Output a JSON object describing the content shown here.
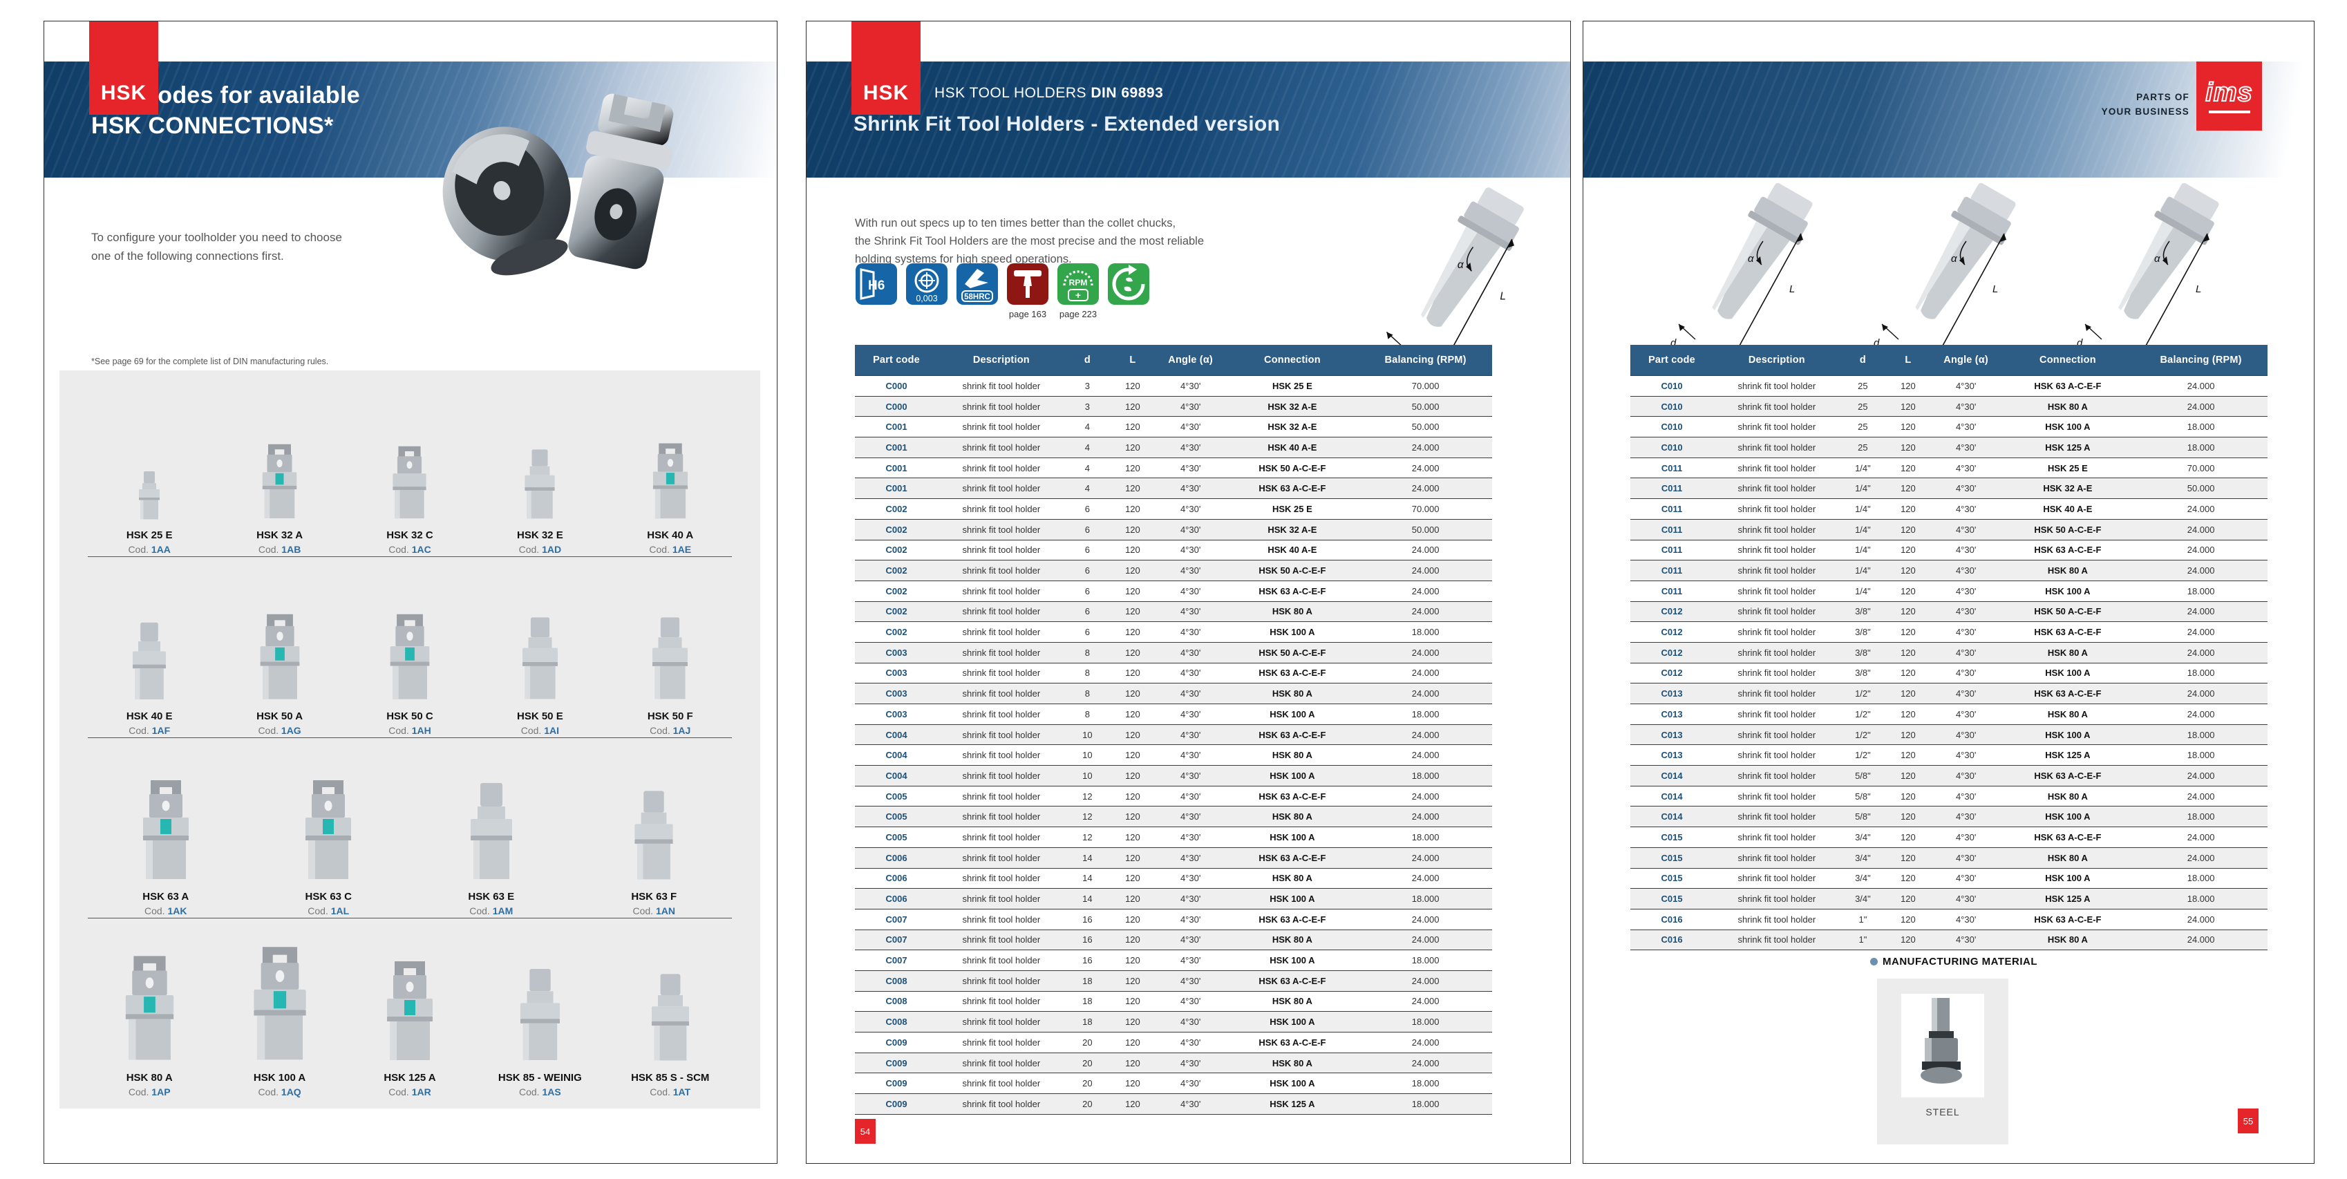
{
  "colors": {
    "accent_red": "#e5252a",
    "table_header_blue": "#2d5c85",
    "band_navy": "#0f3d66",
    "teal_insert": "#27b7b3",
    "code_blue": "#2e6da0",
    "row_stripe": "#efefef"
  },
  "diagram": {
    "alpha": "α",
    "length": "L",
    "diameter": "d"
  },
  "page1": {
    "brand_badge": "HSK",
    "title_line1": "Part codes for available",
    "title_line2": "HSK CONNECTIONS*",
    "intro": "To configure your toolholder you need to choose\none of the following connections first.",
    "footnote": "*See page 69 for the complete list of DIN manufacturing rules.",
    "cod_label": "Cod.",
    "rows": [
      {
        "items": [
          {
            "name": "HSK 25 E",
            "code": "1AA",
            "style": "smooth",
            "scale": 0.5
          },
          {
            "name": "HSK 32 A",
            "code": "1AB",
            "style": "pronged-teal",
            "scale": 0.75
          },
          {
            "name": "HSK 32 C",
            "code": "1AC",
            "style": "pronged",
            "scale": 0.73
          },
          {
            "name": "HSK 32 E",
            "code": "1AD",
            "style": "smooth",
            "scale": 0.72
          },
          {
            "name": "HSK 40 A",
            "code": "1AE",
            "style": "pronged-teal",
            "scale": 0.76
          }
        ]
      },
      {
        "items": [
          {
            "name": "HSK 40 E",
            "code": "1AF",
            "style": "smooth",
            "scale": 0.8
          },
          {
            "name": "HSK 50 A",
            "code": "1AG",
            "style": "pronged-teal",
            "scale": 0.86
          },
          {
            "name": "HSK 50 C",
            "code": "1AH",
            "style": "pronged-teal",
            "scale": 0.86
          },
          {
            "name": "HSK 50 E",
            "code": "1AI",
            "style": "smooth",
            "scale": 0.85
          },
          {
            "name": "HSK 50 F",
            "code": "1AJ",
            "style": "smooth",
            "scale": 0.85
          }
        ]
      },
      {
        "items": [
          {
            "name": "HSK 63 A",
            "code": "1AK",
            "style": "pronged-teal",
            "scale": 1.0
          },
          {
            "name": "HSK 63 C",
            "code": "1AL",
            "style": "pronged-teal",
            "scale": 1.0
          },
          {
            "name": "HSK 63 E",
            "code": "1AM",
            "style": "smooth",
            "scale": 1.0
          },
          {
            "name": "HSK 63 F",
            "code": "1AN",
            "style": "smooth",
            "scale": 0.92
          }
        ]
      },
      {
        "items": [
          {
            "name": "HSK 80 A",
            "code": "1AP",
            "style": "pronged-teal",
            "scale": 1.05
          },
          {
            "name": "HSK 100 A",
            "code": "1AQ",
            "style": "pronged-teal",
            "scale": 1.14
          },
          {
            "name": "HSK 125 A",
            "code": "1AR",
            "style": "pronged-teal",
            "scale": 1.0
          },
          {
            "name": "HSK 85 - WEINIG",
            "code": "1AS",
            "style": "smooth",
            "scale": 0.95
          },
          {
            "name": "HSK 85 S - SCM",
            "code": "1AT",
            "style": "smooth",
            "scale": 0.9
          }
        ]
      }
    ]
  },
  "page2": {
    "brand_badge": "HSK",
    "kicker_regular": "HSK TOOL HOLDERS ",
    "kicker_bold": "DIN 69893",
    "title": "Shrink Fit Tool Holders - Extended version",
    "intro": "With run out specs up to ten times better than the collet chucks,\nthe Shrink Fit Tool Holders are the most precise and the most reliable\nholding systems for high speed operations.",
    "icons": [
      {
        "label": "H6",
        "caption": ""
      },
      {
        "label": "0,003",
        "caption": ""
      },
      {
        "label": "58HRC",
        "caption": ""
      },
      {
        "label": "",
        "caption": "page 163"
      },
      {
        "label": "RPM",
        "plus": "+",
        "caption": "page 223"
      },
      {
        "label": "",
        "caption": ""
      }
    ],
    "page_number": "54",
    "table": {
      "headers": [
        "Part code",
        "Description",
        "d",
        "L",
        "Angle (α)",
        "Connection",
        "Balancing (RPM)"
      ],
      "rows": [
        [
          "C000",
          "shrink fit tool holder",
          "3",
          "120",
          "4°30'",
          "HSK 25 E",
          "70.000"
        ],
        [
          "C000",
          "shrink fit tool holder",
          "3",
          "120",
          "4°30'",
          "HSK 32 A-E",
          "50.000"
        ],
        [
          "C001",
          "shrink fit tool holder",
          "4",
          "120",
          "4°30'",
          "HSK 32 A-E",
          "50.000"
        ],
        [
          "C001",
          "shrink fit tool holder",
          "4",
          "120",
          "4°30'",
          "HSK 40 A-E",
          "24.000"
        ],
        [
          "C001",
          "shrink fit tool holder",
          "4",
          "120",
          "4°30'",
          "HSK 50 A-C-E-F",
          "24.000"
        ],
        [
          "C001",
          "shrink fit tool holder",
          "4",
          "120",
          "4°30'",
          "HSK 63 A-C-E-F",
          "24.000"
        ],
        [
          "C002",
          "shrink fit tool holder",
          "6",
          "120",
          "4°30'",
          "HSK 25 E",
          "70.000"
        ],
        [
          "C002",
          "shrink fit tool holder",
          "6",
          "120",
          "4°30'",
          "HSK 32 A-E",
          "50.000"
        ],
        [
          "C002",
          "shrink fit tool holder",
          "6",
          "120",
          "4°30'",
          "HSK 40 A-E",
          "24.000"
        ],
        [
          "C002",
          "shrink fit tool holder",
          "6",
          "120",
          "4°30'",
          "HSK 50 A-C-E-F",
          "24.000"
        ],
        [
          "C002",
          "shrink fit tool holder",
          "6",
          "120",
          "4°30'",
          "HSK 63 A-C-E-F",
          "24.000"
        ],
        [
          "C002",
          "shrink fit tool holder",
          "6",
          "120",
          "4°30'",
          "HSK 80 A",
          "24.000"
        ],
        [
          "C002",
          "shrink fit tool holder",
          "6",
          "120",
          "4°30'",
          "HSK 100 A",
          "18.000"
        ],
        [
          "C003",
          "shrink fit tool holder",
          "8",
          "120",
          "4°30'",
          "HSK 50 A-C-E-F",
          "24.000"
        ],
        [
          "C003",
          "shrink fit tool holder",
          "8",
          "120",
          "4°30'",
          "HSK 63 A-C-E-F",
          "24.000"
        ],
        [
          "C003",
          "shrink fit tool holder",
          "8",
          "120",
          "4°30'",
          "HSK 80 A",
          "24.000"
        ],
        [
          "C003",
          "shrink fit tool holder",
          "8",
          "120",
          "4°30'",
          "HSK 100 A",
          "18.000"
        ],
        [
          "C004",
          "shrink fit tool holder",
          "10",
          "120",
          "4°30'",
          "HSK 63 A-C-E-F",
          "24.000"
        ],
        [
          "C004",
          "shrink fit tool holder",
          "10",
          "120",
          "4°30'",
          "HSK 80 A",
          "24.000"
        ],
        [
          "C004",
          "shrink fit tool holder",
          "10",
          "120",
          "4°30'",
          "HSK 100 A",
          "18.000"
        ],
        [
          "C005",
          "shrink fit tool holder",
          "12",
          "120",
          "4°30'",
          "HSK 63 A-C-E-F",
          "24.000"
        ],
        [
          "C005",
          "shrink fit tool holder",
          "12",
          "120",
          "4°30'",
          "HSK 80 A",
          "24.000"
        ],
        [
          "C005",
          "shrink fit tool holder",
          "12",
          "120",
          "4°30'",
          "HSK 100 A",
          "18.000"
        ],
        [
          "C006",
          "shrink fit tool holder",
          "14",
          "120",
          "4°30'",
          "HSK 63 A-C-E-F",
          "24.000"
        ],
        [
          "C006",
          "shrink fit tool holder",
          "14",
          "120",
          "4°30'",
          "HSK 80 A",
          "24.000"
        ],
        [
          "C006",
          "shrink fit tool holder",
          "14",
          "120",
          "4°30'",
          "HSK 100 A",
          "18.000"
        ],
        [
          "C007",
          "shrink fit tool holder",
          "16",
          "120",
          "4°30'",
          "HSK 63 A-C-E-F",
          "24.000"
        ],
        [
          "C007",
          "shrink fit tool holder",
          "16",
          "120",
          "4°30'",
          "HSK 80 A",
          "24.000"
        ],
        [
          "C007",
          "shrink fit tool holder",
          "16",
          "120",
          "4°30'",
          "HSK 100 A",
          "18.000"
        ],
        [
          "C008",
          "shrink fit tool holder",
          "18",
          "120",
          "4°30'",
          "HSK 63 A-C-E-F",
          "24.000"
        ],
        [
          "C008",
          "shrink fit tool holder",
          "18",
          "120",
          "4°30'",
          "HSK 80 A",
          "24.000"
        ],
        [
          "C008",
          "shrink fit tool holder",
          "18",
          "120",
          "4°30'",
          "HSK 100 A",
          "18.000"
        ],
        [
          "C009",
          "shrink fit tool holder",
          "20",
          "120",
          "4°30'",
          "HSK 63 A-C-E-F",
          "24.000"
        ],
        [
          "C009",
          "shrink fit tool holder",
          "20",
          "120",
          "4°30'",
          "HSK 80 A",
          "24.000"
        ],
        [
          "C009",
          "shrink fit tool holder",
          "20",
          "120",
          "4°30'",
          "HSK 100 A",
          "18.000"
        ],
        [
          "C009",
          "shrink fit tool holder",
          "20",
          "120",
          "4°30'",
          "HSK 125 A",
          "18.000"
        ]
      ]
    }
  },
  "page3": {
    "tagline_line1": "PARTS OF",
    "tagline_line2": "YOUR BUSINESS",
    "logo_text": "ims",
    "material_heading": "MANUFACTURING MATERIAL",
    "material_label": "STEEL",
    "page_number": "55",
    "table": {
      "headers": [
        "Part code",
        "Description",
        "d",
        "L",
        "Angle (α)",
        "Connection",
        "Balancing (RPM)"
      ],
      "rows": [
        [
          "C010",
          "shrink fit tool holder",
          "25",
          "120",
          "4°30'",
          "HSK 63 A-C-E-F",
          "24.000"
        ],
        [
          "C010",
          "shrink fit tool holder",
          "25",
          "120",
          "4°30'",
          "HSK 80 A",
          "24.000"
        ],
        [
          "C010",
          "shrink fit tool holder",
          "25",
          "120",
          "4°30'",
          "HSK 100 A",
          "18.000"
        ],
        [
          "C010",
          "shrink fit tool holder",
          "25",
          "120",
          "4°30'",
          "HSK 125 A",
          "18.000"
        ],
        [
          "C011",
          "shrink fit tool holder",
          "1/4\"",
          "120",
          "4°30'",
          "HSK 25 E",
          "70.000"
        ],
        [
          "C011",
          "shrink fit tool holder",
          "1/4\"",
          "120",
          "4°30'",
          "HSK 32 A-E",
          "50.000"
        ],
        [
          "C011",
          "shrink fit tool holder",
          "1/4\"",
          "120",
          "4°30'",
          "HSK 40 A-E",
          "24.000"
        ],
        [
          "C011",
          "shrink fit tool holder",
          "1/4\"",
          "120",
          "4°30'",
          "HSK 50 A-C-E-F",
          "24.000"
        ],
        [
          "C011",
          "shrink fit tool holder",
          "1/4\"",
          "120",
          "4°30'",
          "HSK 63 A-C-E-F",
          "24.000"
        ],
        [
          "C011",
          "shrink fit tool holder",
          "1/4\"",
          "120",
          "4°30'",
          "HSK 80 A",
          "24.000"
        ],
        [
          "C011",
          "shrink fit tool holder",
          "1/4\"",
          "120",
          "4°30'",
          "HSK 100 A",
          "18.000"
        ],
        [
          "C012",
          "shrink fit tool holder",
          "3/8\"",
          "120",
          "4°30'",
          "HSK 50 A-C-E-F",
          "24.000"
        ],
        [
          "C012",
          "shrink fit tool holder",
          "3/8\"",
          "120",
          "4°30'",
          "HSK 63 A-C-E-F",
          "24.000"
        ],
        [
          "C012",
          "shrink fit tool holder",
          "3/8\"",
          "120",
          "4°30'",
          "HSK 80 A",
          "24.000"
        ],
        [
          "C012",
          "shrink fit tool holder",
          "3/8\"",
          "120",
          "4°30'",
          "HSK 100 A",
          "18.000"
        ],
        [
          "C013",
          "shrink fit tool holder",
          "1/2\"",
          "120",
          "4°30'",
          "HSK 63 A-C-E-F",
          "24.000"
        ],
        [
          "C013",
          "shrink fit tool holder",
          "1/2\"",
          "120",
          "4°30'",
          "HSK 80 A",
          "24.000"
        ],
        [
          "C013",
          "shrink fit tool holder",
          "1/2\"",
          "120",
          "4°30'",
          "HSK 100 A",
          "18.000"
        ],
        [
          "C013",
          "shrink fit tool holder",
          "1/2\"",
          "120",
          "4°30'",
          "HSK 125 A",
          "18.000"
        ],
        [
          "C014",
          "shrink fit tool holder",
          "5/8\"",
          "120",
          "4°30'",
          "HSK 63 A-C-E-F",
          "24.000"
        ],
        [
          "C014",
          "shrink fit tool holder",
          "5/8\"",
          "120",
          "4°30'",
          "HSK 80 A",
          "24.000"
        ],
        [
          "C014",
          "shrink fit tool holder",
          "5/8\"",
          "120",
          "4°30'",
          "HSK 100 A",
          "18.000"
        ],
        [
          "C015",
          "shrink fit tool holder",
          "3/4\"",
          "120",
          "4°30'",
          "HSK 63 A-C-E-F",
          "24.000"
        ],
        [
          "C015",
          "shrink fit tool holder",
          "3/4\"",
          "120",
          "4°30'",
          "HSK 80 A",
          "24.000"
        ],
        [
          "C015",
          "shrink fit tool holder",
          "3/4\"",
          "120",
          "4°30'",
          "HSK 100 A",
          "18.000"
        ],
        [
          "C015",
          "shrink fit tool holder",
          "3/4\"",
          "120",
          "4°30'",
          "HSK 125 A",
          "18.000"
        ],
        [
          "C016",
          "shrink fit tool holder",
          "1\"",
          "120",
          "4°30'",
          "HSK 63 A-C-E-F",
          "24.000"
        ],
        [
          "C016",
          "shrink fit tool holder",
          "1\"",
          "120",
          "4°30'",
          "HSK 80 A",
          "24.000"
        ]
      ]
    }
  }
}
